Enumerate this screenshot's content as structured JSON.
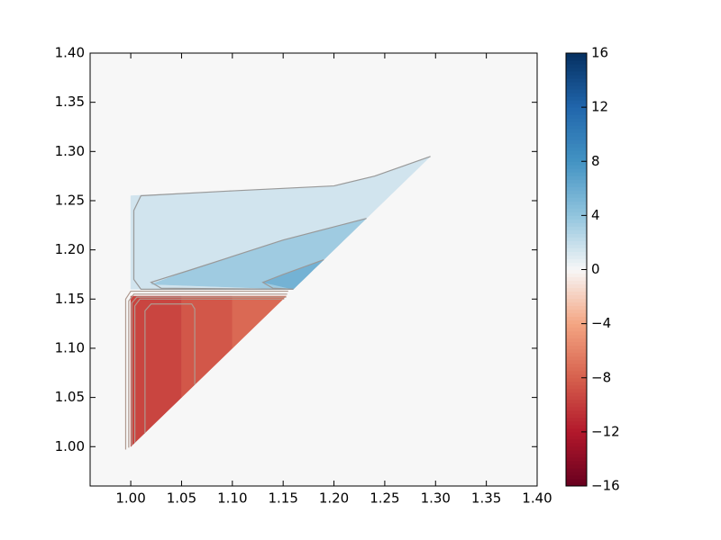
{
  "chart_data": {
    "type": "contour",
    "xlim": [
      0.96,
      1.4
    ],
    "ylim": [
      0.96,
      1.4
    ],
    "xticks": [
      {
        "value": 1.0,
        "label": "1.00"
      },
      {
        "value": 1.05,
        "label": "1.05"
      },
      {
        "value": 1.1,
        "label": "1.10"
      },
      {
        "value": 1.15,
        "label": "1.15"
      },
      {
        "value": 1.2,
        "label": "1.20"
      },
      {
        "value": 1.25,
        "label": "1.25"
      },
      {
        "value": 1.3,
        "label": "1.30"
      },
      {
        "value": 1.35,
        "label": "1.35"
      },
      {
        "value": 1.4,
        "label": "1.40"
      }
    ],
    "yticks": [
      {
        "value": 1.0,
        "label": "1.00"
      },
      {
        "value": 1.05,
        "label": "1.05"
      },
      {
        "value": 1.1,
        "label": "1.10"
      },
      {
        "value": 1.15,
        "label": "1.15"
      },
      {
        "value": 1.2,
        "label": "1.20"
      },
      {
        "value": 1.25,
        "label": "1.25"
      },
      {
        "value": 1.3,
        "label": "1.30"
      },
      {
        "value": 1.35,
        "label": "1.35"
      },
      {
        "value": 1.4,
        "label": "1.40"
      }
    ],
    "colorbar": {
      "lim": [
        -16,
        16
      ],
      "ticks": [
        {
          "value": -16,
          "label": "−16"
        },
        {
          "value": -12,
          "label": "−12"
        },
        {
          "value": -8,
          "label": "−8"
        },
        {
          "value": -4,
          "label": "−4"
        },
        0,
        4,
        8,
        12,
        16
      ]
    },
    "colormap": [
      "#67001f",
      "#b2182b",
      "#d6604d",
      "#f4a582",
      "#f7f7f7",
      "#92c5de",
      "#4393c3",
      "#2166ac",
      "#053061"
    ],
    "background_value": 0,
    "fields": [
      {
        "x": [
          1.0,
          1.05,
          1.05,
          1.0
        ],
        "y": [
          1.0,
          1.05,
          1.153,
          1.153
        ],
        "value": -9.5
      },
      {
        "x": [
          1.05,
          1.1,
          1.1,
          1.05
        ],
        "y": [
          1.05,
          1.1,
          1.153,
          1.153
        ],
        "value": -8.5
      },
      {
        "x": [
          1.1,
          1.153,
          1.153,
          1.1
        ],
        "y": [
          1.1,
          1.153,
          1.153,
          1.153
        ],
        "value": -7.5
      },
      {
        "x": [
          1.0,
          1.0,
          1.1,
          1.2,
          1.24,
          1.295,
          1.16
        ],
        "y": [
          1.16,
          1.255,
          1.26,
          1.265,
          1.275,
          1.295,
          1.16
        ],
        "value": 1.5
      },
      {
        "x": [
          1.02,
          1.06,
          1.15,
          1.232,
          1.16
        ],
        "y": [
          1.165,
          1.18,
          1.21,
          1.232,
          1.16
        ],
        "value": 3.5
      },
      {
        "x": [
          1.13,
          1.19,
          1.16
        ],
        "y": [
          1.167,
          1.19,
          1.16
        ],
        "value": 5.5
      }
    ],
    "contours": [
      {
        "level": 1,
        "x": [
          1.295,
          1.24,
          1.2,
          1.1,
          1.01,
          1.003,
          1.003,
          1.01,
          1.16
        ],
        "y": [
          1.295,
          1.275,
          1.265,
          1.26,
          1.255,
          1.24,
          1.17,
          1.16,
          1.16
        ]
      },
      {
        "level": 3,
        "x": [
          1.232,
          1.15,
          1.06,
          1.02,
          1.03,
          1.16
        ],
        "y": [
          1.232,
          1.21,
          1.18,
          1.167,
          1.161,
          1.16
        ]
      },
      {
        "level": 5,
        "x": [
          1.19,
          1.15,
          1.13,
          1.14,
          1.16
        ],
        "y": [
          1.19,
          1.175,
          1.167,
          1.161,
          1.16
        ]
      },
      {
        "level": -1,
        "x": [
          0.995,
          0.995,
          1.0,
          1.155
        ],
        "y": [
          0.997,
          1.15,
          1.158,
          1.158
        ]
      },
      {
        "level": -3,
        "x": [
          0.998,
          0.998,
          1.003,
          1.154
        ],
        "y": [
          0.999,
          1.148,
          1.155,
          1.155
        ]
      },
      {
        "level": -5,
        "x": [
          1.001,
          1.001,
          1.006,
          1.153
        ],
        "y": [
          1.001,
          1.146,
          1.152,
          1.152
        ]
      },
      {
        "level": -7,
        "x": [
          1.004,
          1.004,
          1.009,
          1.151
        ],
        "y": [
          1.004,
          1.143,
          1.15,
          1.15
        ]
      },
      {
        "level": -9,
        "x": [
          1.014,
          1.014,
          1.02,
          1.06,
          1.063,
          1.063
        ],
        "y": [
          1.014,
          1.138,
          1.145,
          1.145,
          1.14,
          1.063
        ]
      }
    ]
  }
}
